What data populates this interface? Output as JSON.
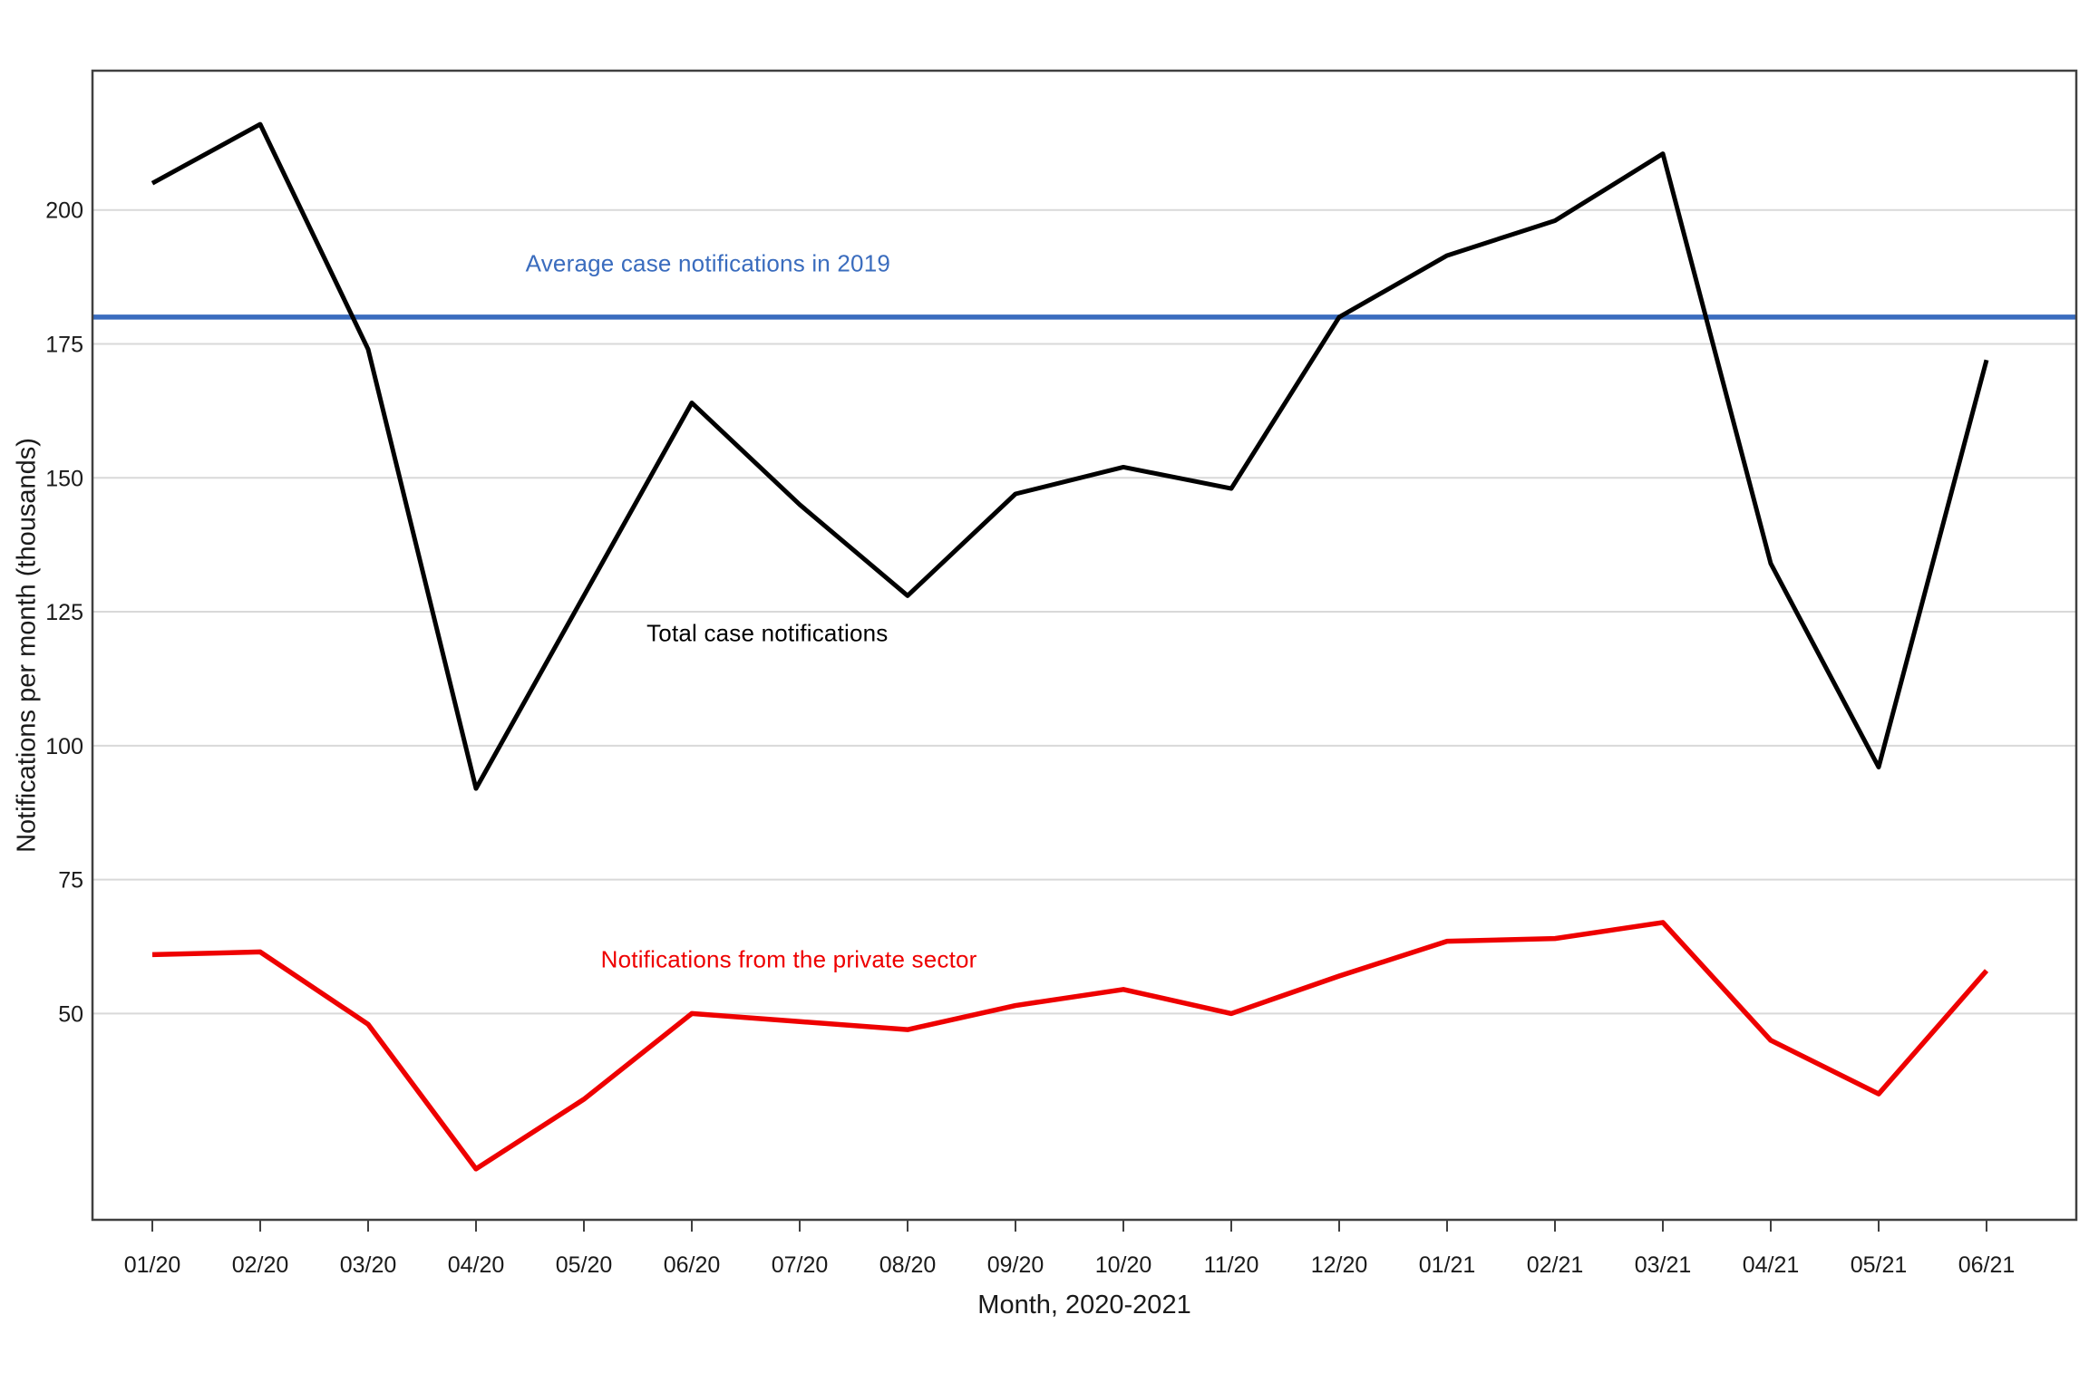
{
  "chart_data": {
    "type": "line",
    "title": "",
    "xlabel": "Month, 2020-2021",
    "ylabel": "Notifications per month (thousands)",
    "categories": [
      "01/20",
      "02/20",
      "03/20",
      "04/20",
      "05/20",
      "06/20",
      "07/20",
      "08/20",
      "09/20",
      "10/20",
      "11/20",
      "12/20",
      "01/21",
      "02/21",
      "03/21",
      "04/21",
      "05/21",
      "06/21"
    ],
    "series": [
      {
        "name": "Total case notifications",
        "color": "#000000",
        "width": 5,
        "values": [
          205,
          216,
          174,
          92,
          128,
          164,
          145,
          128,
          147,
          152,
          148,
          180,
          191.5,
          198,
          210.5,
          134,
          96,
          172
        ]
      },
      {
        "name": "Notifications from the private sector",
        "color": "#EE0000",
        "width": 5.5,
        "values": [
          61,
          61.5,
          48,
          21,
          34,
          50,
          48.5,
          47,
          51.5,
          54.5,
          50,
          57,
          63.5,
          64,
          67,
          45,
          35,
          58
        ]
      }
    ],
    "reference_line": {
      "label": "Average case notifications in 2019",
      "value": 180,
      "color": "#3A6CBE",
      "width": 5.5
    },
    "yticks": [
      50,
      75,
      100,
      125,
      150,
      175,
      200
    ],
    "ylim": [
      11.5,
      226
    ],
    "grid": true,
    "legend_position": "none (inline text annotations)",
    "annotations": [
      {
        "text": "Average case notifications in 2019",
        "color": "#3A6CBE",
        "x_index": 5.15,
        "value": 190
      },
      {
        "text": "Total case notifications",
        "color": "#000000",
        "x_index": 5.7,
        "value": 121
      },
      {
        "text": "Notifications from the private sector",
        "color": "#EE0000",
        "x_index": 5.9,
        "value": 60
      }
    ],
    "colors": {
      "background": "#ffffff",
      "gridline": "#D9D9D9",
      "border": "#404040",
      "tick": "#404040",
      "tick_label": "#1a1a1a"
    }
  }
}
